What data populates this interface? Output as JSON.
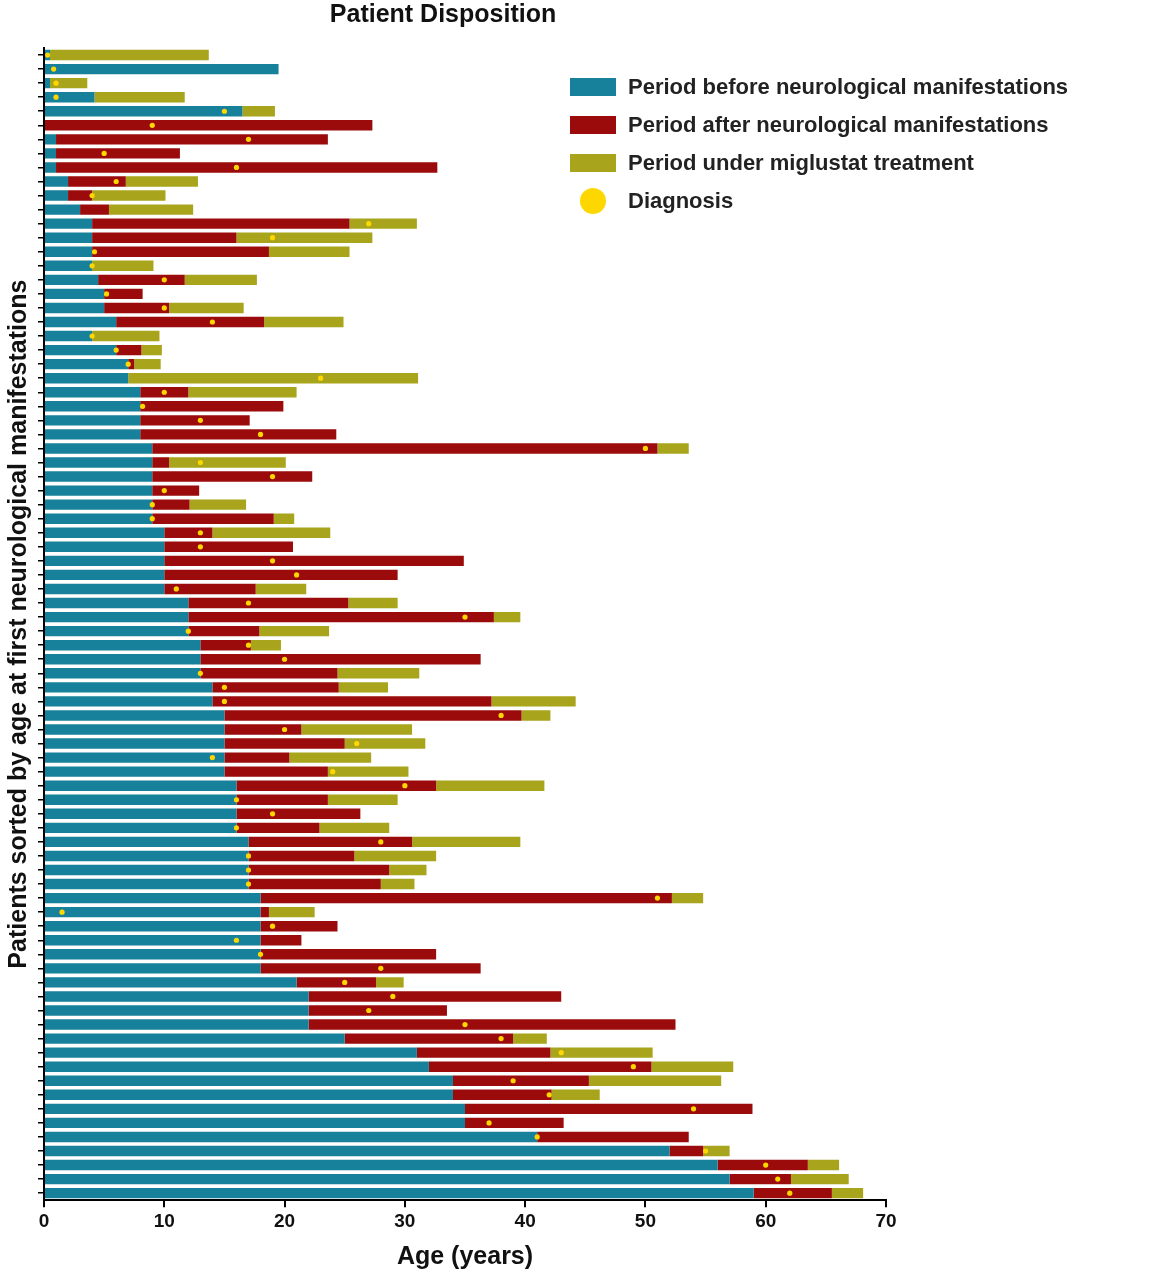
{
  "chart_data": {
    "type": "bar",
    "title": "Patient Disposition",
    "x_label": "Age (years)",
    "y_label": "Patients sorted by age at first neurological manifestations",
    "orientation": "horizontal",
    "stacked": true,
    "grid": false,
    "legend": "upper right",
    "tick_labels": "x",
    "xlim": [
      0,
      70
    ],
    "xticks": [
      0,
      10,
      20,
      30,
      40,
      50,
      60,
      70
    ],
    "categories": [
      null,
      null,
      null,
      null,
      null,
      null,
      null,
      null,
      null,
      null,
      null,
      null,
      null,
      null,
      null,
      null,
      null,
      null,
      null,
      null,
      null,
      null,
      null,
      null,
      null,
      null,
      null,
      null,
      null,
      null,
      null,
      null,
      null,
      null,
      null,
      null,
      null,
      null,
      null,
      null,
      null,
      null,
      null,
      null,
      null,
      null,
      null,
      null,
      null,
      null,
      null,
      null,
      null,
      null,
      null,
      null,
      null,
      null,
      null,
      null,
      null,
      null,
      null,
      null,
      null,
      null,
      null,
      null,
      null,
      null,
      null,
      null,
      null,
      null,
      null,
      null,
      null,
      null,
      null,
      null,
      null,
      null
    ],
    "series": [
      {
        "name": "Period before neurological manifestations",
        "color": "#17809a",
        "values": [
          0.5,
          19.5,
          0.5,
          4.2,
          16.5,
          0,
          1,
          1,
          1,
          2,
          2,
          3,
          4,
          4,
          4,
          4,
          4.5,
          5,
          5,
          6,
          4,
          6,
          7,
          7,
          8,
          8,
          8,
          8,
          9,
          9,
          9,
          9,
          9,
          9,
          10,
          10,
          10,
          10,
          10,
          12,
          12,
          12,
          13,
          13,
          13,
          14,
          14,
          15,
          15,
          15,
          15,
          15,
          16,
          16,
          16,
          16,
          17,
          17,
          17,
          17,
          18,
          18,
          18,
          18,
          18,
          18,
          21,
          22,
          22,
          22,
          25,
          31,
          32,
          34,
          34,
          35,
          35,
          41,
          52,
          56,
          57,
          59
        ]
      },
      {
        "name": "Period after neurological manifestations",
        "color": "#9b0b0b",
        "values": [
          0,
          0,
          0,
          0,
          0,
          27.3,
          22.6,
          10.3,
          31.7,
          4.8,
          2,
          2.4,
          21.4,
          12,
          14.7,
          0,
          7.2,
          3.2,
          5.4,
          12.3,
          0,
          2.1,
          0.5,
          0,
          4,
          11.9,
          9.1,
          16.3,
          42,
          1.4,
          13.3,
          3.9,
          3.1,
          10.1,
          4,
          10.7,
          24.9,
          19.4,
          7.6,
          13.3,
          25.4,
          5.9,
          4.2,
          23.3,
          11.4,
          10.5,
          23.2,
          24.7,
          6.4,
          10,
          5.4,
          8.6,
          16.6,
          7.6,
          10.3,
          6.9,
          13.6,
          8.8,
          11.7,
          11,
          34.2,
          0.7,
          6.4,
          3.4,
          14.6,
          18.3,
          6.6,
          21,
          11.5,
          30.5,
          14,
          11.1,
          18.5,
          11.3,
          8.2,
          23.9,
          8.2,
          12.6,
          2.8,
          7.5,
          5.1,
          6.5
        ]
      },
      {
        "name": "Period under miglustat treatment",
        "color": "#a8a51c",
        "values": [
          13.2,
          0,
          3.1,
          7.5,
          2.7,
          0,
          0,
          0,
          0,
          6,
          6.1,
          7,
          5.6,
          11.3,
          6.7,
          5.1,
          6,
          0,
          6.2,
          6.6,
          5.6,
          1.7,
          2.2,
          24.1,
          9,
          0,
          0,
          0,
          2.6,
          9.7,
          0,
          0,
          4.7,
          1.7,
          9.8,
          0,
          0,
          0,
          4.2,
          4.1,
          2.2,
          5.8,
          2.5,
          0,
          6.8,
          4.1,
          7,
          2.4,
          9.2,
          6.7,
          6.8,
          6.7,
          9,
          5.8,
          0,
          5.8,
          9,
          6.8,
          3.1,
          2.8,
          2.6,
          3.8,
          0,
          0,
          0,
          0,
          2.3,
          0,
          0,
          0,
          2.8,
          8.5,
          6.8,
          11,
          4,
          0,
          0,
          0,
          2.2,
          2.6,
          4.8,
          2.6
        ]
      },
      {
        "name": "Diagnosis",
        "type": "scatter",
        "marker": "circle",
        "color": "#ffd700",
        "values": [
          0.3,
          0.8,
          1,
          1,
          15,
          9,
          17,
          5,
          16,
          6,
          4,
          null,
          27,
          19,
          4.2,
          4,
          10,
          5.2,
          10,
          14,
          4,
          6,
          7,
          23,
          10,
          8.2,
          13,
          18,
          50,
          13,
          19,
          10,
          9,
          9,
          13,
          13,
          19,
          21,
          11,
          17,
          35,
          12,
          17,
          20,
          13,
          15,
          15,
          38,
          20,
          26,
          14,
          24,
          30,
          16,
          19,
          16,
          28,
          17,
          17,
          17,
          51,
          1.5,
          19,
          16,
          18,
          28,
          25,
          29,
          27,
          35,
          38,
          43,
          49,
          39,
          42,
          54,
          37,
          41,
          55,
          60,
          61,
          62
        ]
      }
    ]
  }
}
